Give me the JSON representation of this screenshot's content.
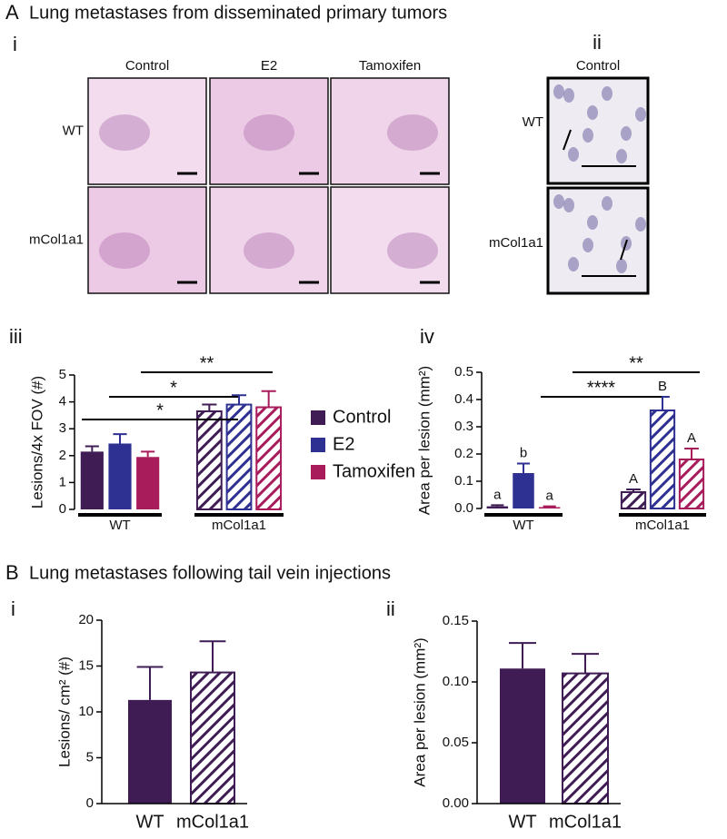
{
  "figure": {
    "panel_a": "A",
    "title_a": "Lung metastases from disseminated primary tumors",
    "panel_b": "B",
    "title_b": "Lung metastases following tail vein injections",
    "micrographs_i": {
      "label": "i",
      "columns": [
        "Control",
        "E2",
        "Tamoxifen"
      ],
      "rows": [
        "WT",
        "mCol1a1"
      ]
    },
    "micrographs_ii": {
      "label": "ii",
      "columns": [
        "Control"
      ],
      "rows": [
        "WT",
        "mCol1a1"
      ]
    }
  },
  "chart_data": [
    {
      "type": "bar",
      "panel": "iii",
      "ylabel": "Lesions/4x  FOV (#)",
      "categories": [
        "WT",
        "mCol1a1"
      ],
      "hatched": [
        false,
        true
      ],
      "series": [
        {
          "name": "Control",
          "color": "#3f1d54",
          "values": [
            2.15,
            3.65
          ],
          "errors": [
            0.2,
            0.25
          ]
        },
        {
          "name": "E2",
          "color": "#2e3192",
          "values": [
            2.45,
            3.9
          ],
          "errors": [
            0.35,
            0.35
          ]
        },
        {
          "name": "Tamoxifen",
          "color": "#a81c5c",
          "values": [
            1.95,
            3.8
          ],
          "errors": [
            0.2,
            0.6
          ]
        }
      ],
      "ylim": [
        0,
        5
      ],
      "yticks": [
        0,
        1,
        2,
        3,
        4,
        5
      ],
      "significance": [
        "*",
        "*",
        "**"
      ],
      "legend": "right"
    },
    {
      "type": "bar",
      "panel": "iv",
      "ylabel": "Area per lesion (mm²)",
      "categories": [
        "WT",
        "mCol1a1"
      ],
      "hatched": [
        false,
        true
      ],
      "series": [
        {
          "color": "#3f1d54",
          "values": [
            0.008,
            0.06
          ],
          "errors": [
            0.004,
            0.01
          ],
          "letters": [
            "a",
            "A"
          ]
        },
        {
          "color": "#2e3192",
          "values": [
            0.13,
            0.36
          ],
          "errors": [
            0.035,
            0.05
          ],
          "letters": [
            "b",
            "B"
          ]
        },
        {
          "color": "#a81c5c",
          "values": [
            0.005,
            0.18
          ],
          "errors": [
            0.003,
            0.04
          ],
          "letters": [
            "a",
            "A"
          ]
        }
      ],
      "ylim": [
        0,
        0.5
      ],
      "yticks": [
        {
          "value": 0,
          "label": "0.0"
        },
        0.1,
        0.2,
        0.3,
        0.4,
        0.5
      ],
      "significance": [
        "****",
        "**"
      ]
    },
    {
      "type": "bar",
      "panel": "i",
      "ylabel": "Lesions/ cm² (#)",
      "categories": [
        "WT",
        "mCol1a1"
      ],
      "hatched": [
        false,
        true
      ],
      "color": "#3f1d54",
      "values": [
        11.3,
        14.3
      ],
      "errors": [
        3.6,
        3.4
      ],
      "ylim": [
        0,
        20
      ],
      "yticks": [
        0,
        5,
        10,
        15,
        20
      ]
    },
    {
      "type": "bar",
      "panel": "ii",
      "ylabel": "Area per lesion (mm²)",
      "categories": [
        "WT",
        "mCol1a1"
      ],
      "hatched": [
        false,
        true
      ],
      "color": "#3f1d54",
      "values": [
        0.111,
        0.107
      ],
      "errors": [
        0.021,
        0.016
      ],
      "ylim": [
        0,
        0.15
      ],
      "yticks": [
        {
          "value": 0,
          "label": "0.00"
        },
        {
          "value": 0.05,
          "label": "0.05"
        },
        {
          "value": 0.1,
          "label": "0.10"
        },
        {
          "value": 0.15,
          "label": "0.15"
        }
      ]
    }
  ]
}
